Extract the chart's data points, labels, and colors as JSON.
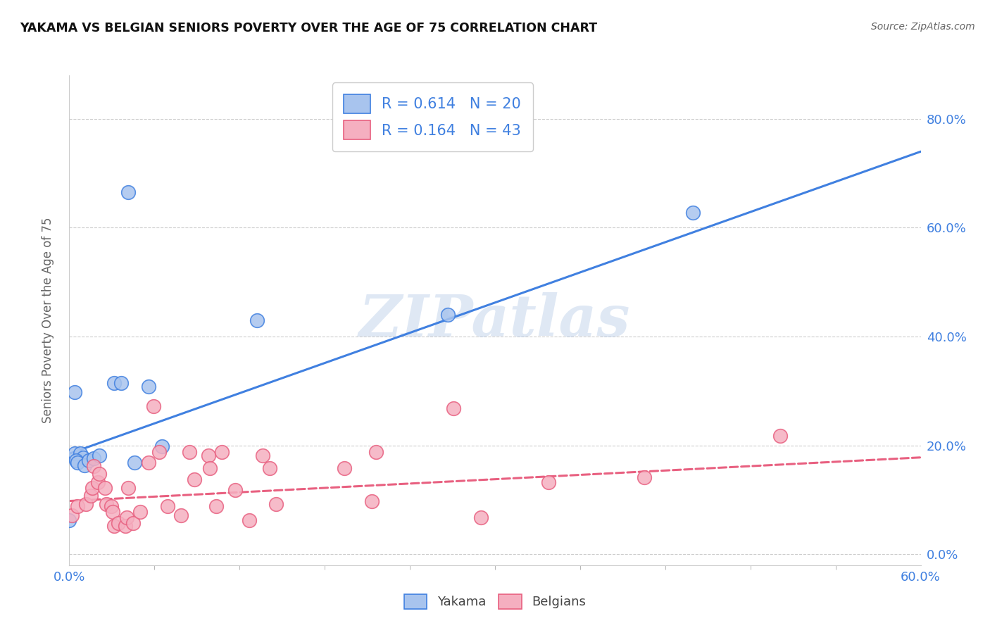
{
  "title": "YAKAMA VS BELGIAN SENIORS POVERTY OVER THE AGE OF 75 CORRELATION CHART",
  "source": "Source: ZipAtlas.com",
  "ylabel": "Seniors Poverty Over the Age of 75",
  "xlim": [
    0.0,
    0.625
  ],
  "ylim": [
    -0.02,
    0.88
  ],
  "watermark": "ZIPatlas",
  "legend_yakama_R": "0.614",
  "legend_yakama_N": "20",
  "legend_belgians_R": "0.164",
  "legend_belgians_N": "43",
  "yakama_color": "#a8c4ee",
  "belgians_color": "#f5afc0",
  "yakama_line_color": "#4080e0",
  "belgians_line_color": "#e86080",
  "yakama_scatter": [
    [
      0.004,
      0.185
    ],
    [
      0.008,
      0.185
    ],
    [
      0.01,
      0.178
    ],
    [
      0.005,
      0.173
    ],
    [
      0.006,
      0.168
    ],
    [
      0.011,
      0.163
    ],
    [
      0.014,
      0.172
    ],
    [
      0.018,
      0.177
    ],
    [
      0.022,
      0.182
    ],
    [
      0.033,
      0.315
    ],
    [
      0.038,
      0.315
    ],
    [
      0.048,
      0.168
    ],
    [
      0.058,
      0.308
    ],
    [
      0.068,
      0.198
    ],
    [
      0.043,
      0.665
    ],
    [
      0.138,
      0.43
    ],
    [
      0.278,
      0.44
    ],
    [
      0.004,
      0.298
    ],
    [
      0.458,
      0.628
    ],
    [
      0.0,
      0.062
    ]
  ],
  "belgians_scatter": [
    [
      0.002,
      0.072
    ],
    [
      0.006,
      0.088
    ],
    [
      0.012,
      0.092
    ],
    [
      0.016,
      0.108
    ],
    [
      0.017,
      0.122
    ],
    [
      0.018,
      0.162
    ],
    [
      0.021,
      0.132
    ],
    [
      0.022,
      0.148
    ],
    [
      0.026,
      0.122
    ],
    [
      0.027,
      0.092
    ],
    [
      0.031,
      0.088
    ],
    [
      0.032,
      0.078
    ],
    [
      0.033,
      0.052
    ],
    [
      0.036,
      0.057
    ],
    [
      0.041,
      0.052
    ],
    [
      0.042,
      0.068
    ],
    [
      0.043,
      0.122
    ],
    [
      0.047,
      0.057
    ],
    [
      0.052,
      0.078
    ],
    [
      0.058,
      0.168
    ],
    [
      0.062,
      0.272
    ],
    [
      0.066,
      0.188
    ],
    [
      0.072,
      0.088
    ],
    [
      0.082,
      0.072
    ],
    [
      0.088,
      0.188
    ],
    [
      0.092,
      0.138
    ],
    [
      0.102,
      0.182
    ],
    [
      0.103,
      0.158
    ],
    [
      0.108,
      0.088
    ],
    [
      0.112,
      0.188
    ],
    [
      0.122,
      0.118
    ],
    [
      0.132,
      0.062
    ],
    [
      0.142,
      0.182
    ],
    [
      0.147,
      0.158
    ],
    [
      0.152,
      0.092
    ],
    [
      0.202,
      0.158
    ],
    [
      0.222,
      0.098
    ],
    [
      0.225,
      0.188
    ],
    [
      0.282,
      0.268
    ],
    [
      0.302,
      0.068
    ],
    [
      0.352,
      0.132
    ],
    [
      0.422,
      0.142
    ],
    [
      0.522,
      0.218
    ]
  ],
  "yakama_trendline_x": [
    0.0,
    0.625
  ],
  "yakama_trendline_y": [
    0.185,
    0.74
  ],
  "belgians_trendline_x": [
    0.0,
    0.625
  ],
  "belgians_trendline_y": [
    0.098,
    0.178
  ],
  "right_yticks": [
    0.0,
    0.2,
    0.4,
    0.6,
    0.8
  ],
  "right_yticklabels": [
    "0.0%",
    "20.0%",
    "40.0%",
    "60.0%",
    "80.0%"
  ],
  "xtick_left_label": "0.0%",
  "xtick_right_label": "60.0%",
  "background_color": "#ffffff",
  "grid_color": "#c8c8c8"
}
